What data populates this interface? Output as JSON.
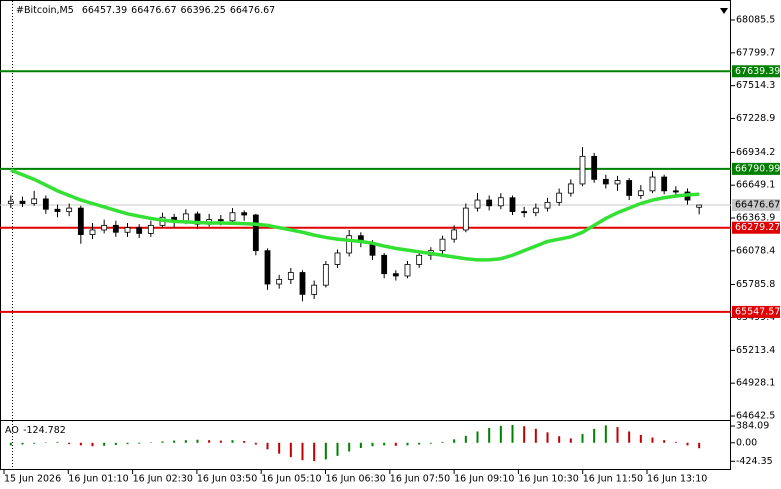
{
  "chart_data": {
    "type": "candlestick",
    "symbol": "#Bitcoin,M5",
    "candles": {
      "open": [
        66490,
        66510,
        66490,
        66530,
        66440,
        66420,
        66450,
        66220,
        66260,
        66300,
        66240,
        66280,
        66230,
        66300,
        66370,
        66330,
        66400,
        66310,
        66350,
        66340,
        66410,
        66390,
        66080,
        65790,
        65830,
        65890,
        65700,
        65780,
        65960,
        66060,
        66210,
        66150,
        66040,
        65880,
        65860,
        65960,
        66040,
        66080,
        66180,
        66260,
        66450,
        66520,
        66470,
        66540,
        66420,
        66410,
        66450,
        66500,
        66580,
        66660,
        66900,
        66700,
        66660,
        66690,
        66560,
        66600,
        66720,
        66600,
        66590,
        66457.39
      ],
      "high": [
        66560,
        66550,
        66600,
        66560,
        66480,
        66490,
        66470,
        66320,
        66350,
        66340,
        66320,
        66310,
        66340,
        66410,
        66400,
        66440,
        66420,
        66400,
        66390,
        66450,
        66430,
        66400,
        66100,
        65870,
        65930,
        65910,
        65820,
        65990,
        66090,
        66260,
        66240,
        66170,
        66060,
        65910,
        65990,
        66070,
        66110,
        66210,
        66300,
        66490,
        66580,
        66560,
        66580,
        66560,
        66460,
        66490,
        66540,
        66620,
        66700,
        66980,
        66930,
        66740,
        66730,
        66710,
        66650,
        66770,
        66740,
        66640,
        66620,
        66476.67
      ],
      "low": [
        66450,
        66460,
        66470,
        66400,
        66370,
        66380,
        66140,
        66180,
        66230,
        66200,
        66200,
        66190,
        66200,
        66280,
        66280,
        66310,
        66270,
        66290,
        66300,
        66320,
        66340,
        66040,
        65740,
        65750,
        65790,
        65640,
        65660,
        65760,
        65930,
        66030,
        66110,
        66000,
        65840,
        65820,
        65840,
        65930,
        66000,
        66050,
        66150,
        66240,
        66420,
        66430,
        66440,
        66390,
        66370,
        66380,
        66420,
        66470,
        66550,
        66640,
        66670,
        66620,
        66600,
        66520,
        66530,
        66580,
        66570,
        66540,
        66480,
        66396.25
      ],
      "close": [
        66510,
        66490,
        66530,
        66440,
        66420,
        66450,
        66220,
        66260,
        66300,
        66240,
        66280,
        66230,
        66300,
        66370,
        66330,
        66400,
        66310,
        66350,
        66340,
        66410,
        66390,
        66080,
        65790,
        65830,
        65890,
        65700,
        65780,
        65960,
        66060,
        66210,
        66150,
        66040,
        65880,
        65860,
        65960,
        66040,
        66080,
        66180,
        66260,
        66450,
        66520,
        66470,
        66540,
        66420,
        66410,
        66450,
        66500,
        66580,
        66660,
        66900,
        66700,
        66660,
        66690,
        66560,
        66600,
        66720,
        66600,
        66590,
        66520,
        66476.67
      ]
    },
    "ma": {
      "color": "#33e033",
      "values": [
        66780,
        66740,
        66700,
        66650,
        66600,
        66560,
        66520,
        66490,
        66460,
        66430,
        66400,
        66380,
        66360,
        66345,
        66335,
        66330,
        66325,
        66320,
        66320,
        66318,
        66315,
        66310,
        66300,
        66280,
        66260,
        66240,
        66215,
        66195,
        66180,
        66170,
        66160,
        66145,
        66120,
        66100,
        66085,
        66070,
        66055,
        66040,
        66025,
        66010,
        66000,
        66000,
        66010,
        66040,
        66080,
        66120,
        66160,
        66180,
        66200,
        66240,
        66300,
        66360,
        66410,
        66450,
        66490,
        66520,
        66540,
        66555,
        66565,
        66570
      ]
    },
    "levels": [
      {
        "value": 67639.39,
        "color": "#008000"
      },
      {
        "value": 66790.99,
        "color": "#008000"
      },
      {
        "value": 66279.27,
        "color": "#e00000"
      },
      {
        "value": 65547.57,
        "color": "#e00000"
      }
    ],
    "last_price": 66476.67,
    "ylim": [
      64608,
      68259
    ],
    "yticks": [
      {
        "value": 68085.5,
        "label": "68085.5"
      },
      67799.7,
      67514.3,
      67228.9,
      66934.2,
      66649.1,
      66363.9,
      66078.4,
      65785.8,
      65499.4,
      65213.4,
      64928.1,
      64642.5
    ],
    "x_labels": [
      "15 Jun 2026",
      "16 Jun 01:10",
      "16 Jun 02:30",
      "16 Jun 03:50",
      "16 Jun 05:10",
      "16 Jun 06:30",
      "16 Jun 07:50",
      "16 Jun 09:10",
      "16 Jun 10:30",
      "16 Jun 11:50",
      "16 Jun 13:10"
    ],
    "indicator": {
      "name": "AO",
      "values": [
        -60,
        -40,
        -20,
        10,
        20,
        -30,
        -60,
        -80,
        -70,
        -50,
        -30,
        -20,
        10,
        30,
        50,
        60,
        70,
        60,
        50,
        60,
        40,
        -40,
        -150,
        -250,
        -330,
        -400,
        -420,
        -380,
        -300,
        -200,
        -120,
        -80,
        -60,
        -70,
        -60,
        -40,
        -20,
        20,
        80,
        160,
        260,
        340,
        390,
        410,
        380,
        320,
        240,
        150,
        100,
        200,
        320,
        400,
        360,
        260,
        180,
        120,
        60,
        20,
        -60,
        -124.782
      ],
      "up_color": "#008000",
      "down_color": "#c00000",
      "ylim": [
        -625,
        500
      ],
      "yticks": [
        384.09,
        {
          "value": 0,
          "label": "0.00"
        },
        -424.35
      ]
    }
  }
}
